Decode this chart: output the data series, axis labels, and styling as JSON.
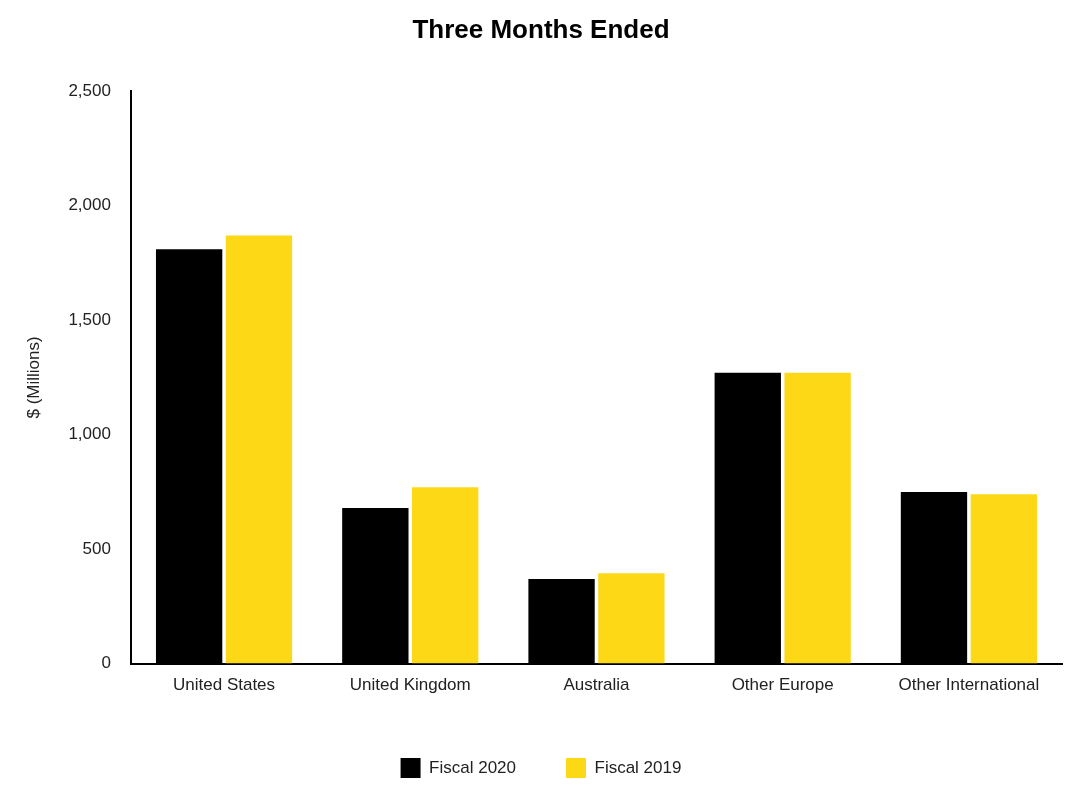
{
  "chart_data": {
    "type": "bar",
    "title": "Three Months Ended",
    "ylabel": "$ (Millions)",
    "categories": [
      "United States",
      "United Kingdom",
      "Australia",
      "Other Europe",
      "Other International"
    ],
    "series": [
      {
        "name": "Fiscal 2020",
        "color": "#000000",
        "values": [
          1810,
          680,
          370,
          1270,
          750
        ]
      },
      {
        "name": "Fiscal 2019",
        "color": "#fcd817",
        "values": [
          1870,
          770,
          395,
          1270,
          740
        ]
      }
    ],
    "ylim": [
      0,
      2500
    ],
    "yticks": [
      {
        "value": 0,
        "label": "0"
      },
      {
        "value": 500,
        "label": "500"
      },
      {
        "value": 1000,
        "label": "1,000"
      },
      {
        "value": 1500,
        "label": "1,500"
      },
      {
        "value": 2000,
        "label": "2,000"
      },
      {
        "value": 2500,
        "label": "2,500"
      }
    ],
    "grid": false,
    "legend": "bottom"
  }
}
